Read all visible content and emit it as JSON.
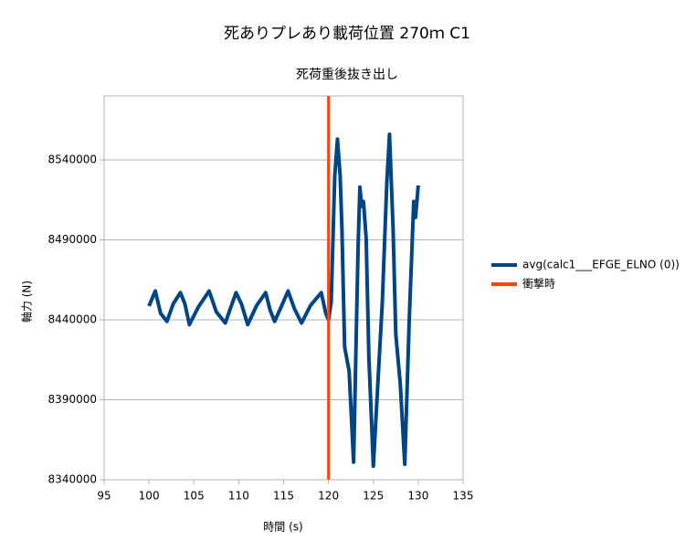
{
  "chart_data": {
    "type": "line",
    "title": "死ありプレあり載荷位置 270ｍ C1",
    "subtitle": "死荷重後抜き出し",
    "x_label": "時間 (s)",
    "y_label": "軸力 (N)",
    "xlim": [
      95,
      135
    ],
    "xticks": [
      95,
      100,
      105,
      110,
      115,
      120,
      125,
      130,
      135
    ],
    "ylim": [
      8340000,
      8580000
    ],
    "yticks": [
      8340000,
      8390000,
      8440000,
      8490000,
      8540000
    ],
    "grid": true,
    "legend": "right",
    "series": [
      {
        "name": "avg(calc1___EFGE_ELNO (0))",
        "color": "#004586",
        "x": [
          100,
          100.7,
          101.3,
          102,
          102.7,
          103.5,
          104,
          104.5,
          105.5,
          106.7,
          107.5,
          108.5,
          109,
          109.7,
          110.3,
          111,
          112,
          113,
          113.5,
          114,
          114.8,
          115.5,
          116.2,
          117,
          118,
          119.2,
          119.7,
          120,
          120.3,
          120.7,
          121,
          121.3,
          121.5,
          121.8,
          122.3,
          122.8,
          123.3,
          123.5,
          123.7,
          123.9,
          124.2,
          124.5,
          125,
          125.5,
          126,
          126.5,
          126.8,
          127.2,
          127.5,
          128,
          128.5,
          129,
          129.5,
          129.7,
          130
        ],
        "values": [
          8448600,
          8458000,
          8444000,
          8439000,
          8450000,
          8457000,
          8450000,
          8437000,
          8448000,
          8458000,
          8445000,
          8438000,
          8446000,
          8457000,
          8450000,
          8437000,
          8449000,
          8457000,
          8446000,
          8439000,
          8449000,
          8458000,
          8447000,
          8438000,
          8449000,
          8457000,
          8444000,
          8440000,
          8451000,
          8530000,
          8553000,
          8530000,
          8497000,
          8423000,
          8408000,
          8351000,
          8485700,
          8523000,
          8511000,
          8514000,
          8491000,
          8417000,
          8348500,
          8400000,
          8451000,
          8525700,
          8556000,
          8497000,
          8431000,
          8400000,
          8349700,
          8440000,
          8514000,
          8504000,
          8524000
        ]
      },
      {
        "name": "衝撃時",
        "color": "#ff420e",
        "x": [
          120,
          120
        ],
        "values": [
          8340000,
          8580000
        ]
      }
    ]
  }
}
